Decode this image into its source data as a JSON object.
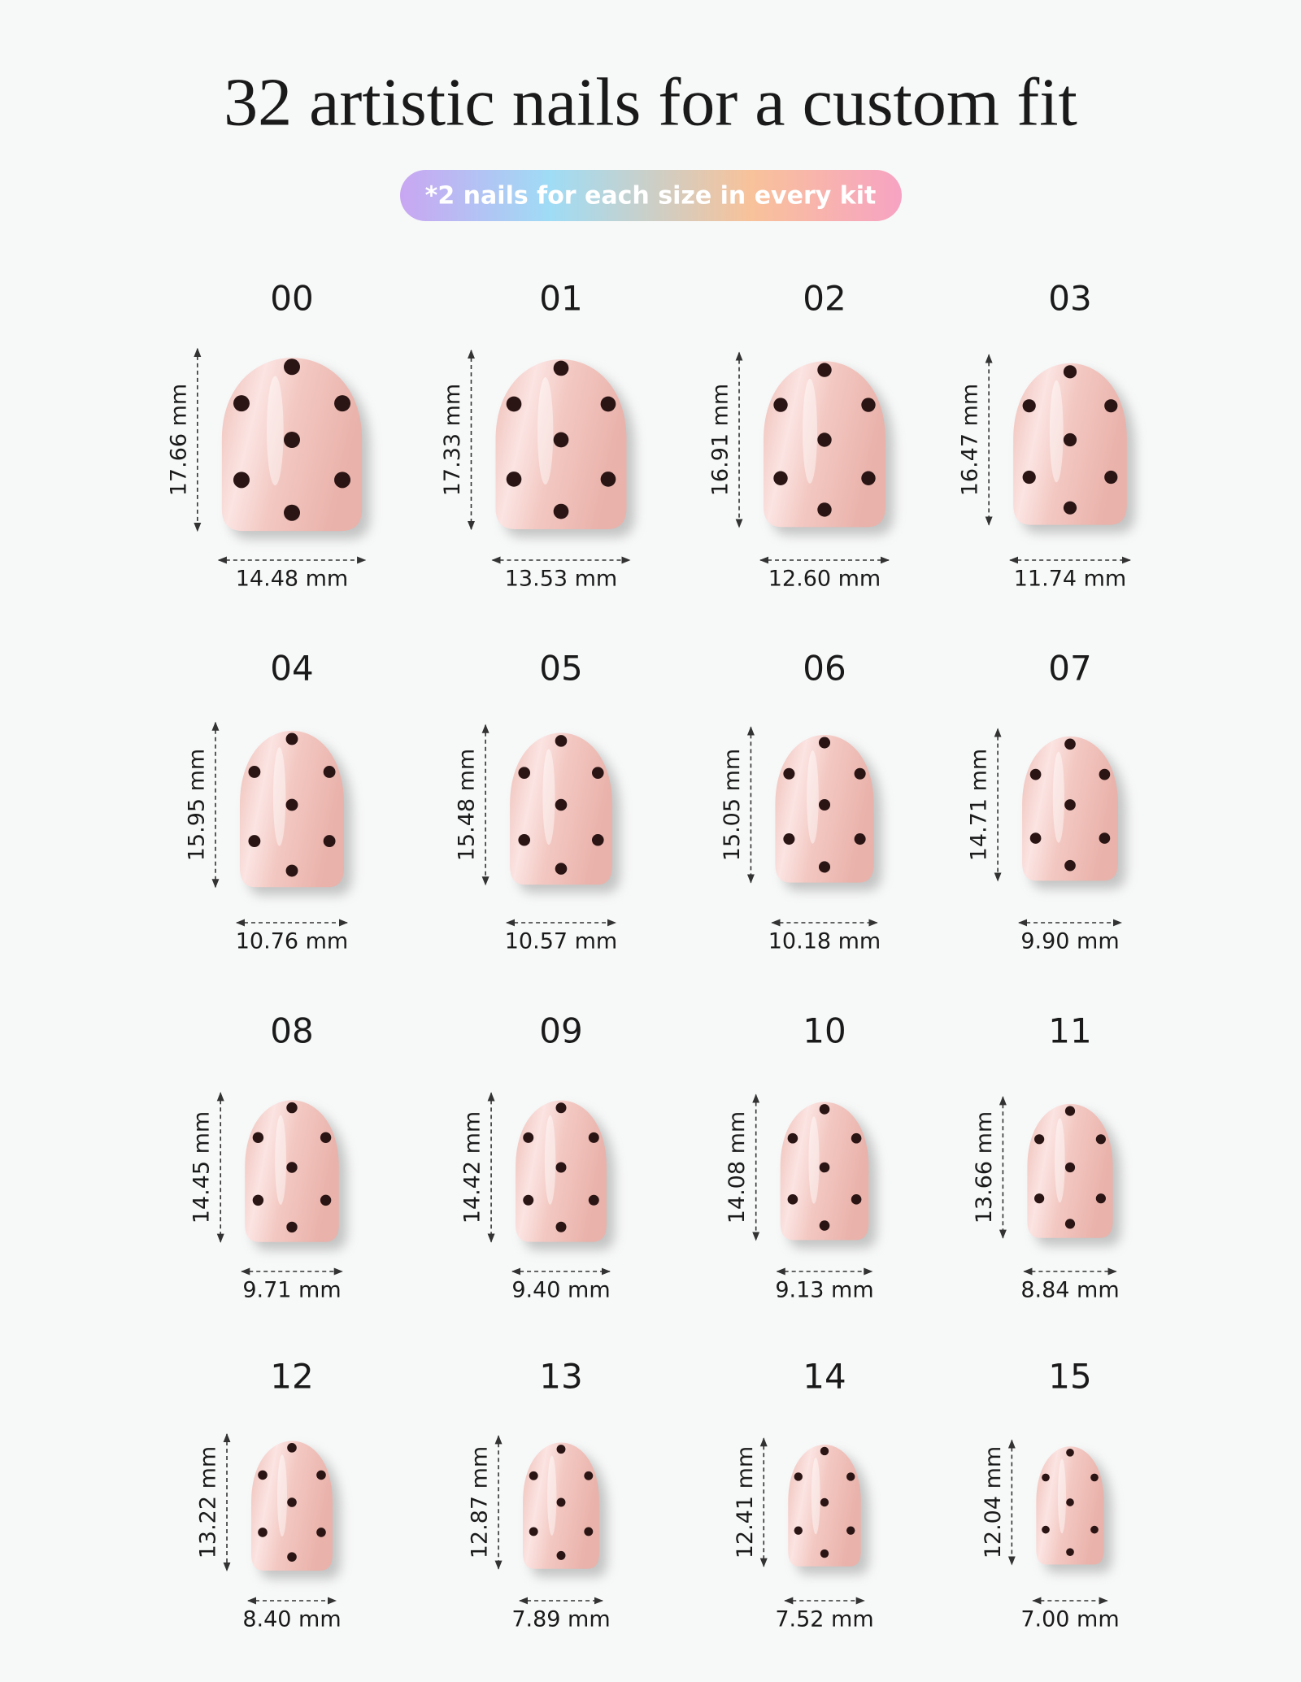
{
  "header": {
    "title": "32 artistic nails for a custom fit",
    "subtitle": "*2 nails for each size in every kit"
  },
  "nails": [
    {
      "size": "00",
      "length": "17.66 mm",
      "width": "14.48 mm"
    },
    {
      "size": "01",
      "length": "17.33 mm",
      "width": "13.53 mm"
    },
    {
      "size": "02",
      "length": "16.91 mm",
      "width": "12.60 mm"
    },
    {
      "size": "03",
      "length": "16.47 mm",
      "width": "11.74 mm"
    },
    {
      "size": "04",
      "length": "15.95 mm",
      "width": "10.76 mm"
    },
    {
      "size": "05",
      "length": "15.48 mm",
      "width": "10.57 mm"
    },
    {
      "size": "06",
      "length": "15.05 mm",
      "width": "10.18 mm"
    },
    {
      "size": "07",
      "length": "14.71 mm",
      "width": "9.90 mm"
    },
    {
      "size": "08",
      "length": "14.45 mm",
      "width": "9.71 mm"
    },
    {
      "size": "09",
      "length": "14.42 mm",
      "width": "9.40 mm"
    },
    {
      "size": "10",
      "length": "14.08 mm",
      "width": "9.13 mm"
    },
    {
      "size": "11",
      "length": "13.66 mm",
      "width": "8.84 mm"
    },
    {
      "size": "12",
      "length": "13.22 mm",
      "width": "8.40 mm"
    },
    {
      "size": "13",
      "length": "12.87 mm",
      "width": "7.89 mm"
    },
    {
      "size": "14",
      "length": "12.41 mm",
      "width": "7.52 mm"
    },
    {
      "size": "15",
      "length": "12.04 mm",
      "width": "7.00 mm"
    }
  ]
}
